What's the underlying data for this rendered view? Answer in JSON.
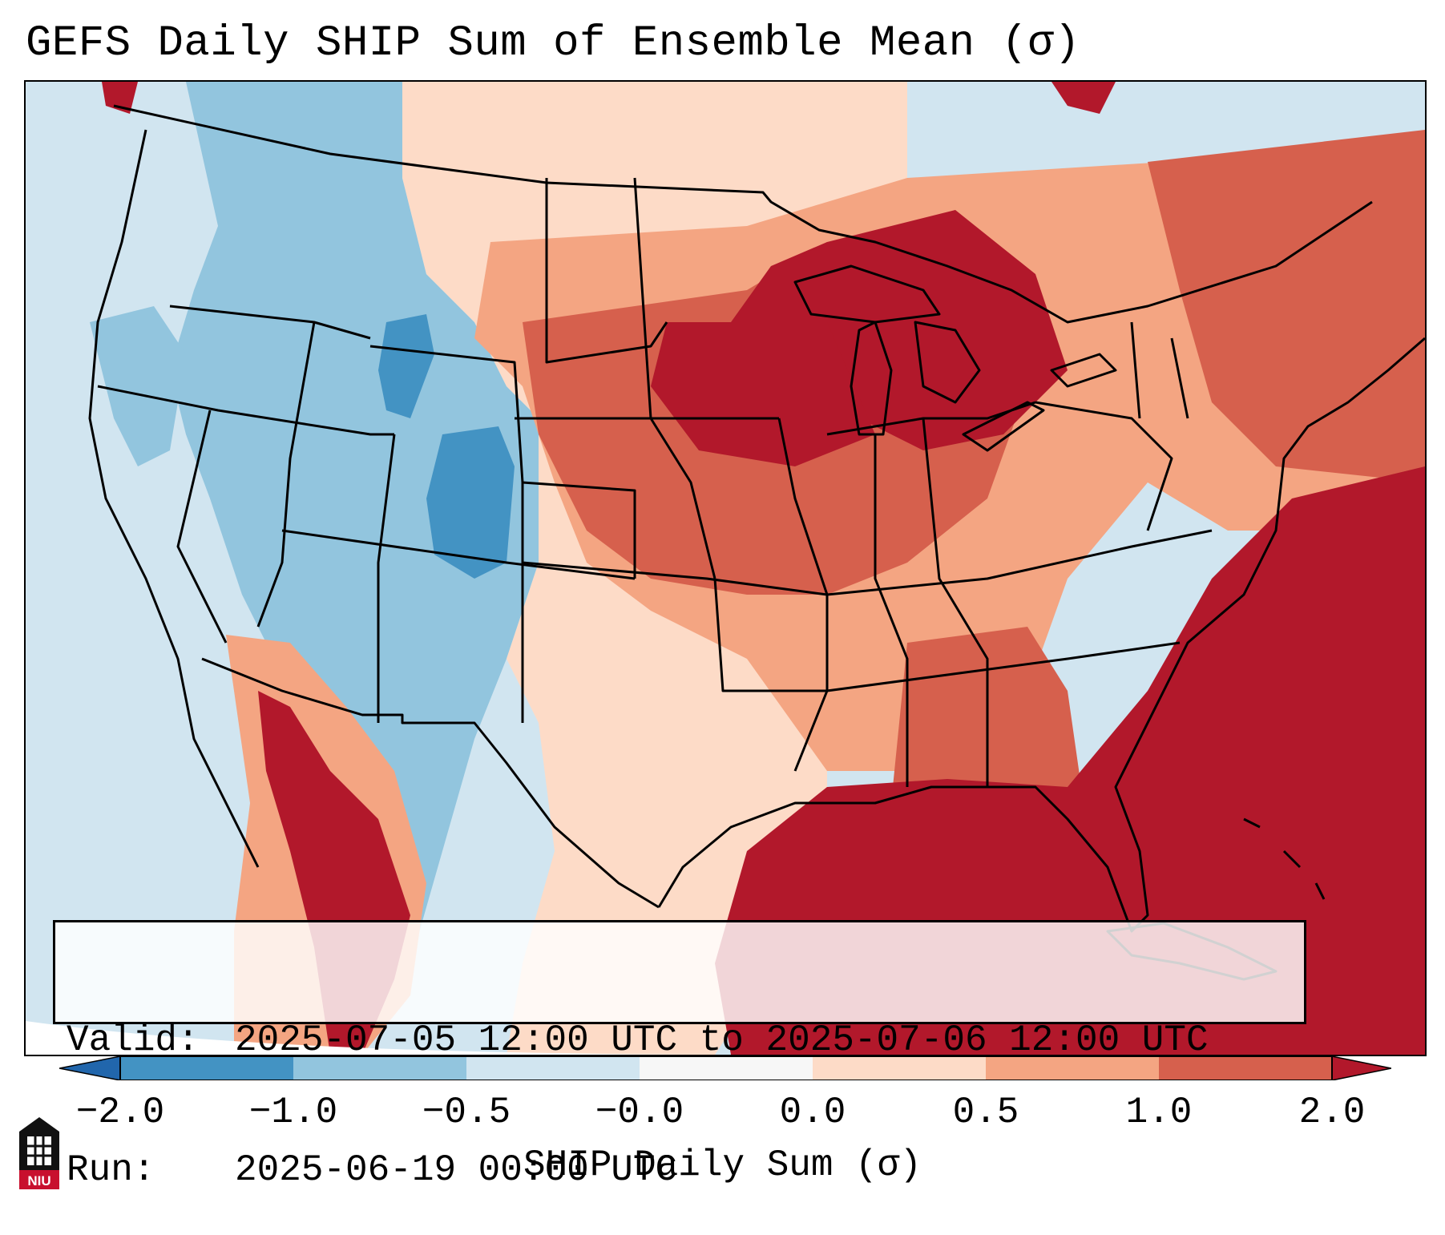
{
  "title": "GEFS Daily SHIP Sum of Ensemble Mean (σ)",
  "info": {
    "valid_label": "Valid:",
    "valid_value": "2025-07-05 12:00 UTC to 2025-07-06 12:00 UTC",
    "run_label": "Run:",
    "run_value": "2025-06-19 00:00 UTC"
  },
  "colorbar": {
    "label": "SHIP Daily Sum (σ)",
    "ticks": [
      "−2.0",
      "−1.0",
      "−0.5",
      "−0.0",
      "0.0",
      "0.5",
      "1.0",
      "2.0"
    ],
    "bins": [
      {
        "range": "<-2.0",
        "color": "#2166ac"
      },
      {
        "range": "-2.0 to -1.0",
        "color": "#4393c3"
      },
      {
        "range": "-1.0 to -0.5",
        "color": "#92c5de"
      },
      {
        "range": "-0.5 to -0.0",
        "color": "#d1e5f0"
      },
      {
        "range": "-0.0 to 0.0",
        "color": "#f7f7f7"
      },
      {
        "range": "0.0 to 0.5",
        "color": "#fddbc7"
      },
      {
        "range": "0.5 to 1.0",
        "color": "#f4a582"
      },
      {
        "range": "1.0 to 2.0",
        "color": "#d6604d"
      },
      {
        "range": ">2.0",
        "color": "#b2182b"
      }
    ]
  },
  "colors": {
    "c_neg2": "#4393c3",
    "c_neg1": "#92c5de",
    "c_neg05": "#d1e5f0",
    "c_pos05": "#fddbc7",
    "c_pos1": "#f4a582",
    "c_pos2": "#d6604d",
    "c_max": "#b2182b"
  },
  "logo_text": "NIU"
}
